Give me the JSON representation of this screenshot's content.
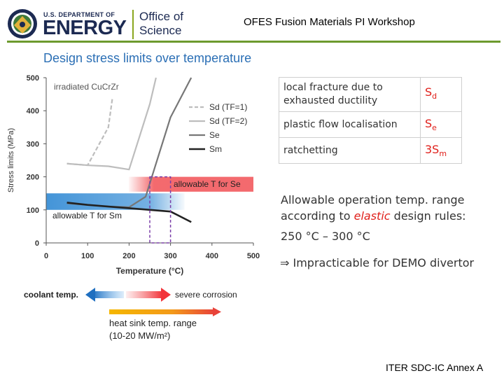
{
  "header": {
    "doe_small": "U.S. DEPARTMENT OF",
    "doe_big": "ENERGY",
    "office_line1": "Office of",
    "office_line2": "Science",
    "title": "OFES Fusion Materials PI Workshop"
  },
  "colors": {
    "accent_green": "#6d9a2e",
    "navy": "#1c2a52",
    "red_text": "#e0201b",
    "band_red": "#f25a5e",
    "band_blue": "#3a8fd6",
    "box_purple": "#7b3fa8",
    "line_dark": "#222222",
    "line_grey": "#bdbdbd",
    "line_mid": "#777777"
  },
  "chart_data": {
    "type": "line",
    "title": "Design stress limits over temperature",
    "xlabel": "Temperature (°C)",
    "ylabel": "Stress limits (MPa)",
    "xlim": [
      0,
      500
    ],
    "ylim": [
      0,
      500
    ],
    "xticks": [
      "0",
      "100",
      "200",
      "300",
      "400",
      "500"
    ],
    "yticks": [
      "0",
      "100",
      "200",
      "300",
      "400",
      "500"
    ],
    "material_label": "irradiated CuCrZr",
    "series": [
      {
        "name": "Sd (TF=1)",
        "color": "#bdbdbd",
        "dash": true,
        "x": [
          50,
          100,
          150,
          160
        ],
        "y": [
          240,
          235,
          350,
          440
        ]
      },
      {
        "name": "Sd (TF=2)",
        "color": "#bdbdbd",
        "dash": false,
        "x": [
          50,
          100,
          150,
          200,
          250,
          265
        ],
        "y": [
          240,
          235,
          232,
          222,
          420,
          500
        ]
      },
      {
        "name": "Se",
        "color": "#777777",
        "dash": false,
        "x": [
          50,
          100,
          150,
          200,
          240,
          300,
          350
        ],
        "y": [
          120,
          115,
          110,
          108,
          140,
          380,
          500
        ]
      },
      {
        "name": "Sm",
        "color": "#222222",
        "dash": false,
        "x": [
          50,
          100,
          150,
          200,
          250,
          300,
          350
        ],
        "y": [
          122,
          115,
          110,
          105,
          100,
          95,
          63
        ]
      }
    ],
    "bands": [
      {
        "label": "allowable T for Se",
        "color": "#f25a5e",
        "x": [
          250,
          500
        ],
        "y": [
          155,
          200
        ]
      },
      {
        "label": "allowable T for Sm",
        "color": "#3a8fd6",
        "x": [
          0,
          300
        ],
        "y": [
          100,
          150
        ]
      }
    ],
    "box": {
      "x": [
        250,
        300
      ],
      "y": [
        0,
        200
      ]
    },
    "annotations": {
      "coolant": "coolant temp.",
      "corrosion": "severe corrosion",
      "heat_sink_line1": "heat sink temp. range",
      "heat_sink_line2": "(10-20 MW/m²)"
    }
  },
  "table": {
    "rows": [
      {
        "line1": "local fracture due to",
        "line2": "exhausted ductility",
        "sym": "S",
        "sub": "d"
      },
      {
        "line1": "plastic flow localisation",
        "sym": "S",
        "sub": "e"
      },
      {
        "line1": "ratchetting",
        "sym": "3S",
        "sub": "m"
      }
    ]
  },
  "info": {
    "line1": "Allowable operation temp. range",
    "line2_pre": "according to ",
    "line2_em": "elastic",
    "line2_post": " design rules:",
    "line3": "250 °C – 300 °C",
    "line4": "⇒ Impracticable for DEMO divertor"
  },
  "footer": {
    "source": "ITER SDC-IC Annex A"
  }
}
